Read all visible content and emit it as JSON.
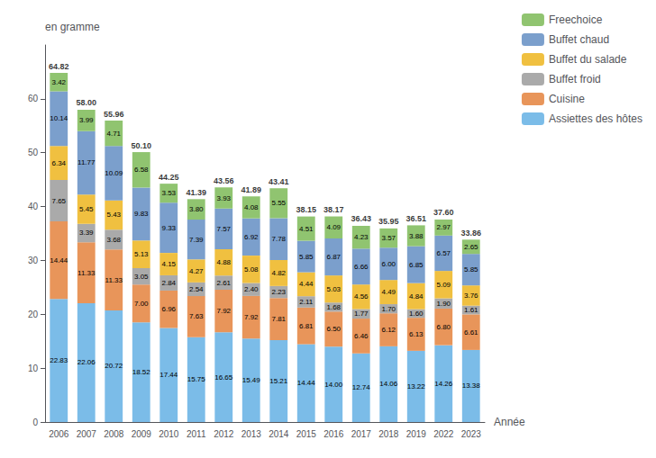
{
  "chart_data": {
    "type": "bar",
    "stacked": true,
    "data_labels": true,
    "grid": false,
    "legend": "upper right",
    "xlabel": "Année",
    "ylabel": "en gramme",
    "categories": [
      "2006",
      "2007",
      "2008",
      "2009",
      "2010",
      "2011",
      "2012",
      "2013",
      "2014",
      "2015",
      "2016",
      "2017",
      "2018",
      "2019",
      "2022",
      "2023"
    ],
    "ylim": [
      0,
      70
    ],
    "yticks": [
      0,
      10,
      20,
      30,
      40,
      50,
      60
    ],
    "series": [
      {
        "name": "Assiettes des hôtes",
        "color": "#7BBCE8",
        "values": [
          22.83,
          22.06,
          20.72,
          18.52,
          17.44,
          15.75,
          16.65,
          15.49,
          15.21,
          14.44,
          14.0,
          12.74,
          14.06,
          13.22,
          14.26,
          13.38
        ],
        "value_labels": [
          "22.83",
          "22.06",
          "20.72",
          "18.52",
          "17.44",
          "15.75",
          "16.65",
          "15.49",
          "15.21",
          "14.44",
          "14.00",
          "12.74",
          "14.06",
          "13.22",
          "14.26",
          "13.38"
        ]
      },
      {
        "name": "Cuisine",
        "color": "#E8955A",
        "values": [
          14.44,
          11.33,
          11.33,
          7.0,
          6.96,
          7.63,
          7.92,
          7.92,
          7.81,
          6.81,
          6.5,
          6.46,
          6.12,
          6.13,
          6.8,
          6.61
        ],
        "value_labels": [
          "14.44",
          "11.33",
          "11.33",
          "7.00",
          "6.96",
          "7.63",
          "7.92",
          "7.92",
          "7.81",
          "6.81",
          "6.50",
          "6.46",
          "6.12",
          "6.13",
          "6.80",
          "6.61"
        ]
      },
      {
        "name": "Buffet froid",
        "color": "#AAAAAA",
        "values": [
          7.65,
          3.39,
          3.68,
          3.05,
          2.84,
          2.54,
          2.61,
          2.4,
          2.23,
          2.11,
          1.68,
          1.77,
          1.7,
          1.6,
          1.9,
          1.61
        ],
        "value_labels": [
          "7.65",
          "3.39",
          "3.68",
          "3.05",
          "2.84",
          "2.54",
          "2.61",
          "2.40",
          "2.23",
          "2.11",
          "1.68",
          "1.77",
          "1.70",
          "1.60",
          "1.90",
          "1.61"
        ]
      },
      {
        "name": "Buffet du salade",
        "color": "#F0C040",
        "values": [
          6.34,
          5.45,
          5.43,
          5.13,
          4.15,
          4.27,
          4.88,
          5.08,
          4.82,
          4.44,
          5.03,
          4.56,
          4.49,
          4.84,
          5.09,
          3.76
        ],
        "value_labels": [
          "6.34",
          "5.45",
          "5.43",
          "5.13",
          "4.15",
          "4.27",
          "4.88",
          "5.08",
          "4.82",
          "4.44",
          "5.03",
          "4.56",
          "4.49",
          "4.84",
          "5.09",
          "3.76"
        ]
      },
      {
        "name": "Buffet chaud",
        "color": "#7B9FCC",
        "values": [
          10.14,
          11.77,
          10.09,
          9.83,
          9.33,
          7.39,
          7.57,
          6.92,
          7.78,
          5.85,
          6.87,
          6.66,
          6.0,
          6.85,
          6.57,
          5.85
        ],
        "value_labels": [
          "10.14",
          "11.77",
          "10.09",
          "9.83",
          "9.33",
          "7.39",
          "7.57",
          "6.92",
          "7.78",
          "5.85",
          "6.87",
          "6.66",
          "6.00",
          "6.85",
          "6.57",
          "5.85"
        ]
      },
      {
        "name": "Freechoice",
        "color": "#90C470",
        "values": [
          3.42,
          3.99,
          4.71,
          6.58,
          3.53,
          3.8,
          3.93,
          4.08,
          5.55,
          4.51,
          4.09,
          4.23,
          3.57,
          3.88,
          2.97,
          2.65
        ],
        "value_labels": [
          "3.42",
          "3.99",
          "4.71",
          "6.58",
          "3.53",
          "3.80",
          "3.93",
          "4.08",
          "5.55",
          "4.51",
          "4.09",
          "4.23",
          "3.57",
          "3.88",
          "2.97",
          "2.65"
        ]
      }
    ],
    "totals": {
      "values": [
        64.82,
        58.0,
        55.96,
        50.1,
        44.25,
        41.39,
        43.56,
        41.89,
        43.41,
        38.15,
        38.17,
        36.43,
        35.95,
        36.51,
        37.6,
        33.86
      ],
      "value_labels": [
        "64.82",
        "58.00",
        "55.96",
        "50.10",
        "44.25",
        "41.39",
        "43.56",
        "41.89",
        "43.41",
        "38.15",
        "38.17",
        "36.43",
        "35.95",
        "36.51",
        "37.60",
        "33.86"
      ]
    }
  }
}
